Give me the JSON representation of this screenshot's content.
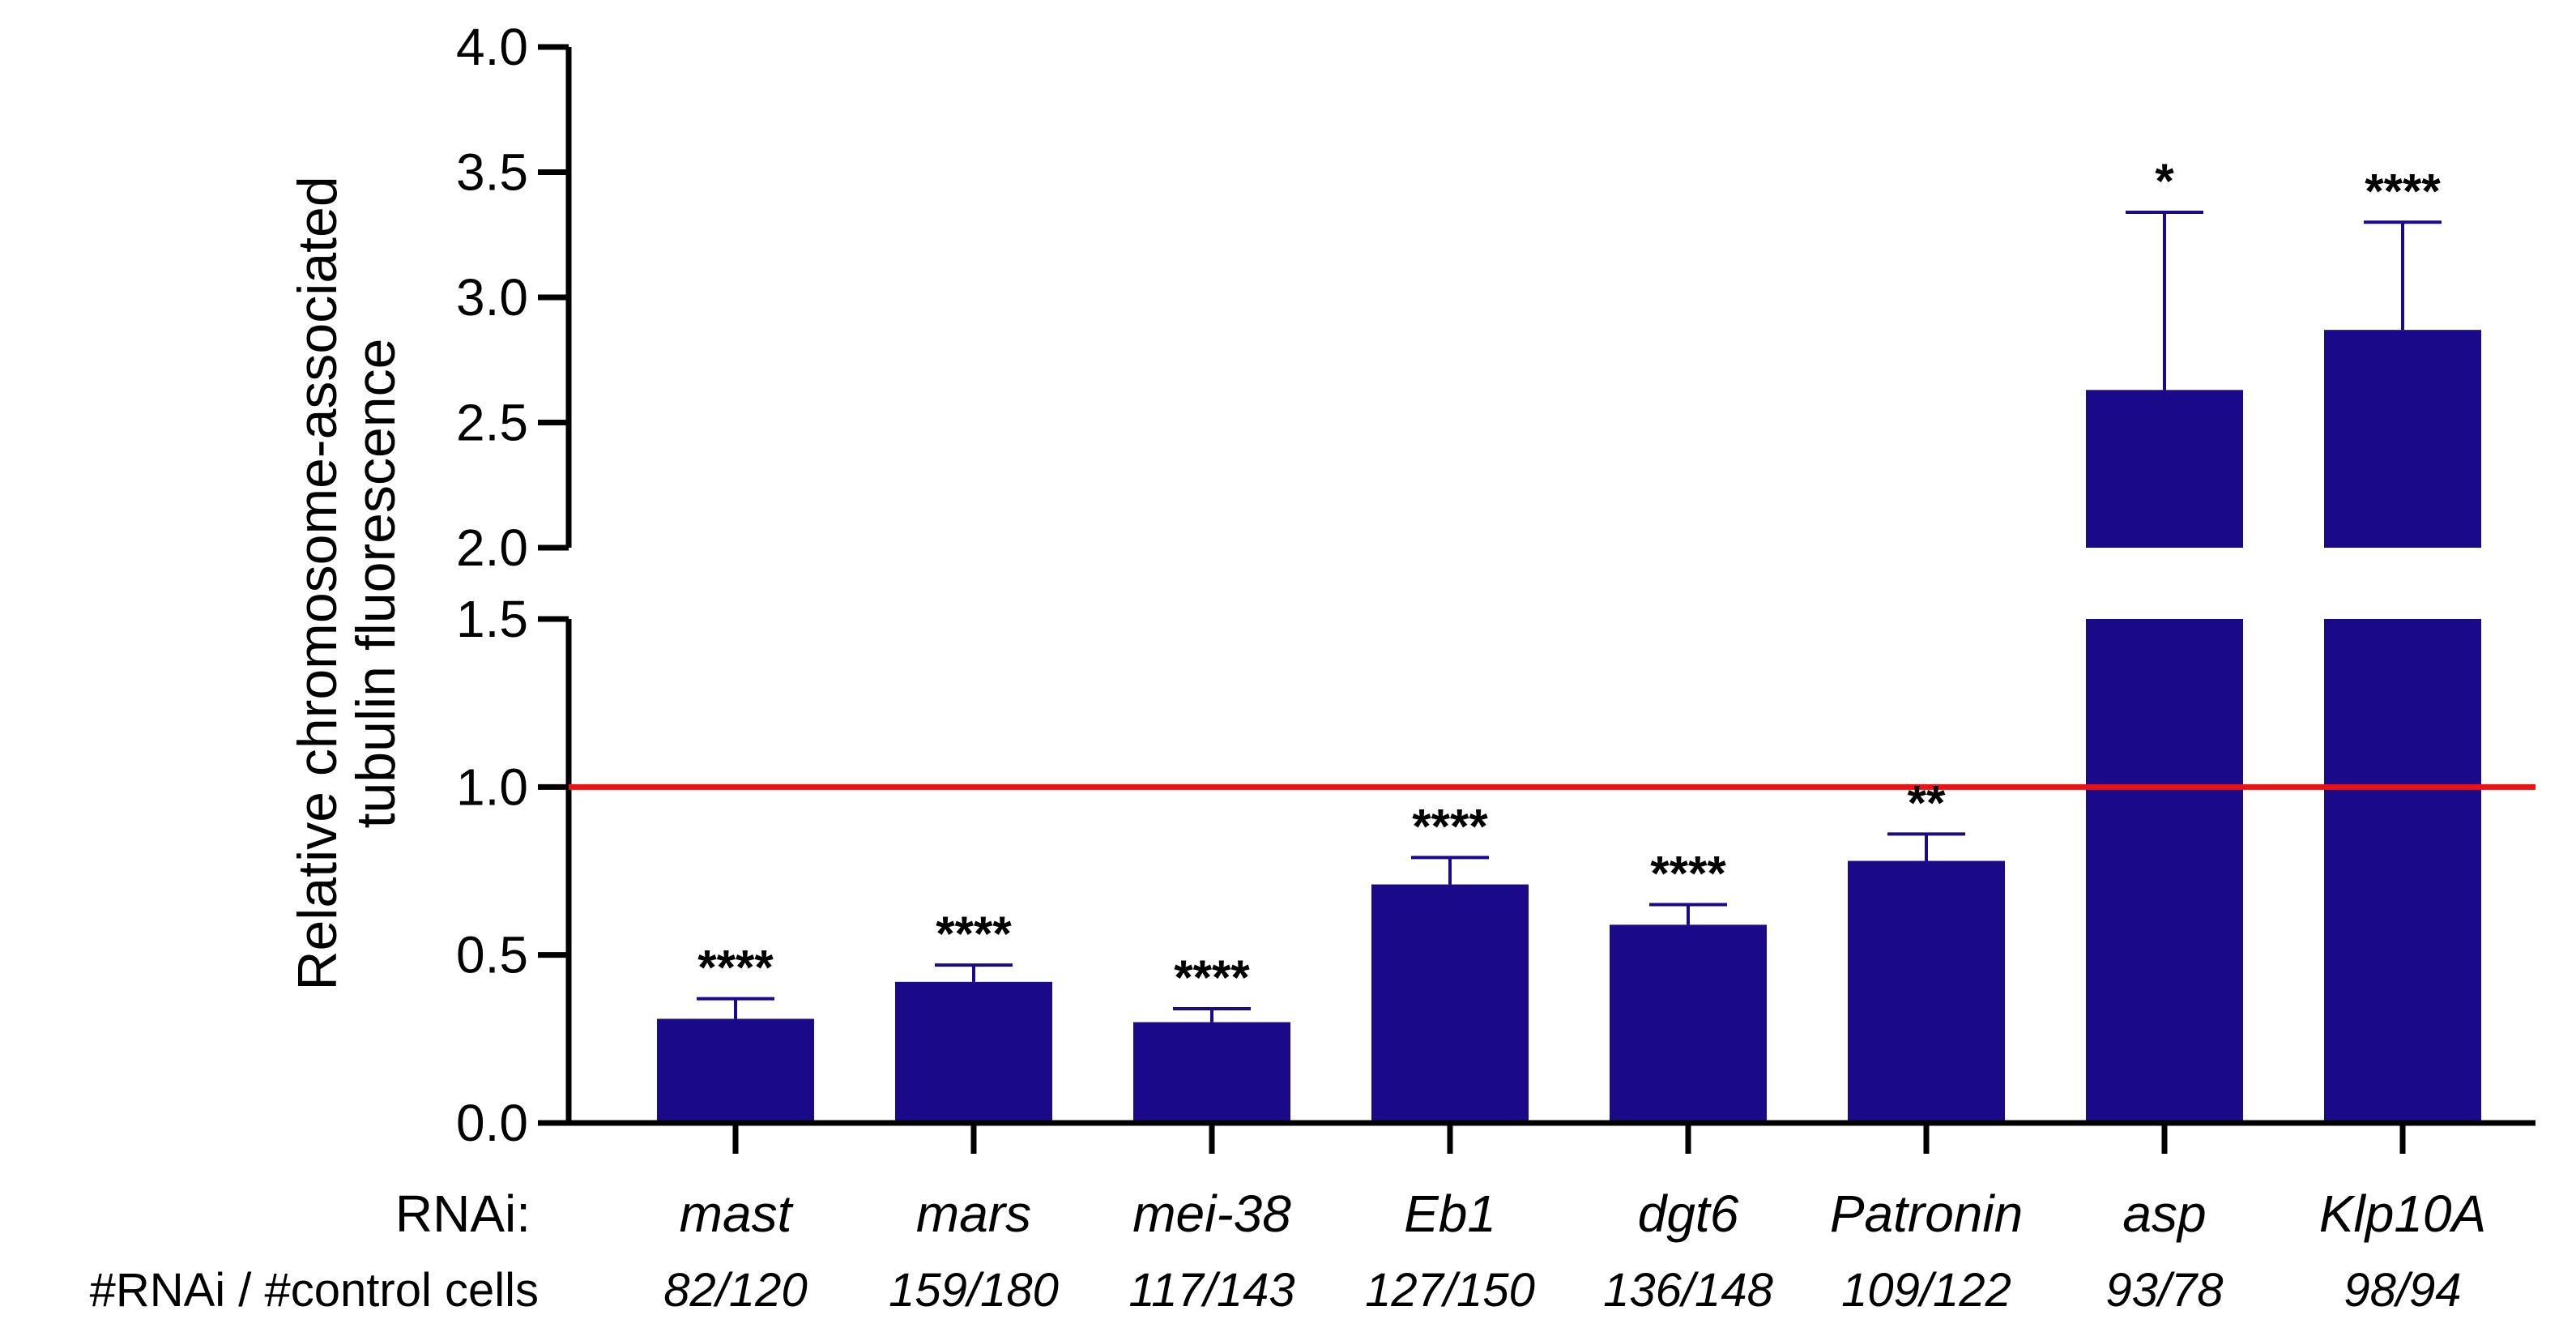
{
  "chart_data": {
    "type": "bar",
    "ylabel_lines": [
      "Relative chromosome-associated",
      "tubulin fluorescence"
    ],
    "row_labels": {
      "rnai": "RNAi:",
      "counts": "#RNAi / #control cells"
    },
    "categories": [
      "mast",
      "mars",
      "mei-38",
      "Eb1",
      "dgt6",
      "Patronin",
      "asp",
      "Klp10A"
    ],
    "counts": [
      "82/120",
      "159/180",
      "117/143",
      "127/150",
      "136/148",
      "109/122",
      "93/78",
      "98/94"
    ],
    "values": [
      0.31,
      0.42,
      0.3,
      0.71,
      0.59,
      0.78,
      2.63,
      2.87
    ],
    "errors": [
      0.06,
      0.05,
      0.04,
      0.08,
      0.06,
      0.08,
      0.71,
      0.43
    ],
    "significance": [
      "****",
      "****",
      "****",
      "****",
      "****",
      "**",
      "*",
      "****"
    ],
    "y_axis_segments": [
      {
        "range": [
          0,
          1.5
        ],
        "ticks": [
          0.0,
          0.5,
          1.0,
          1.5
        ],
        "tick_labels": [
          "0.0",
          "0.5",
          "1.0",
          "1.5"
        ]
      },
      {
        "range": [
          2.0,
          4.0
        ],
        "ticks": [
          2.0,
          2.5,
          3.0,
          3.5,
          4.0
        ],
        "tick_labels": [
          "2.0",
          "2.5",
          "3.0",
          "3.5",
          "4.0"
        ]
      }
    ],
    "reference_line": 1.0,
    "bar_color": "#1a0a8a",
    "reference_color": "#ee1111"
  }
}
